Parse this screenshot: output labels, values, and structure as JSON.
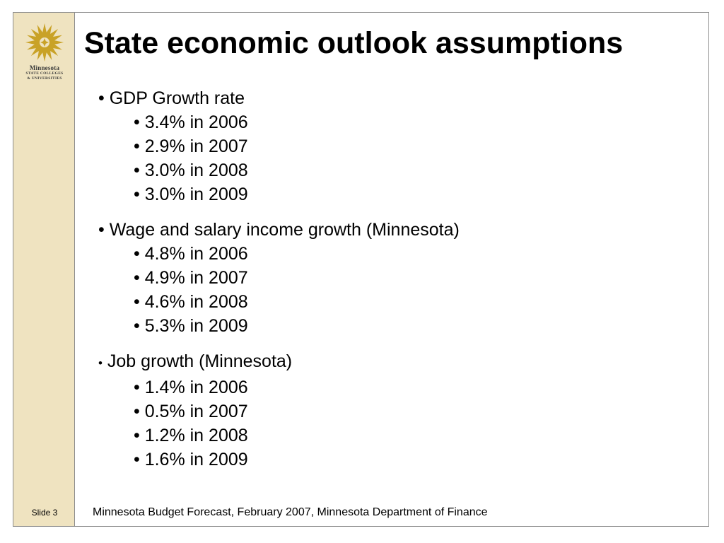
{
  "logo": {
    "name": "Minnesota",
    "line1": "STATE COLLEGES",
    "line2": "& UNIVERSITIES",
    "color": "#c9a227"
  },
  "slide": {
    "title": "State economic outlook assumptions",
    "number_label": "Slide 3",
    "footer": "Minnesota Budget Forecast, February 2007, Minnesota Department of Finance"
  },
  "bullets": [
    {
      "label": "GDP Growth rate",
      "items": [
        "3.4% in 2006",
        "2.9% in 2007",
        "3.0% in 2008",
        "3.0% in 2009"
      ]
    },
    {
      "label": "Wage and salary income growth (Minnesota)",
      "items": [
        "4.8% in 2006",
        "4.9% in 2007",
        "4.6% in 2008",
        "5.3% in 2009"
      ]
    },
    {
      "label": "Job growth (Minnesota)",
      "items": [
        "1.4% in 2006",
        "0.5% in 2007",
        "1.2% in 2008",
        "1.6% in 2009"
      ]
    }
  ],
  "colors": {
    "sidebar": "#efe3c0",
    "frame_border": "#8c8c8c"
  }
}
